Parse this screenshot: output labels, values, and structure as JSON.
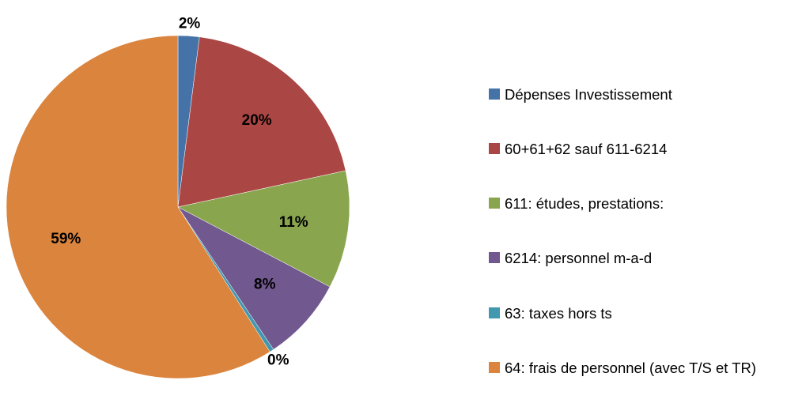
{
  "chart_data": {
    "type": "pie",
    "categories": [
      "Dépenses Investissement",
      "60+61+62 sauf 611-6214",
      "611: études, prestations:",
      "6214: personnel m-a-d",
      "63: taxes hors ts",
      "64: frais de personnel (avec T/S et TR)"
    ],
    "values": [
      2.0,
      19.6,
      11.1,
      7.9,
      0.4,
      59.0
    ],
    "value_labels": [
      "2%",
      "20%",
      "11%",
      "8%",
      "0%",
      "59%"
    ],
    "colors": [
      "#4572a7",
      "#aa4643",
      "#89a54e",
      "#71588f",
      "#4198af",
      "#db843d"
    ],
    "legend": "right"
  }
}
